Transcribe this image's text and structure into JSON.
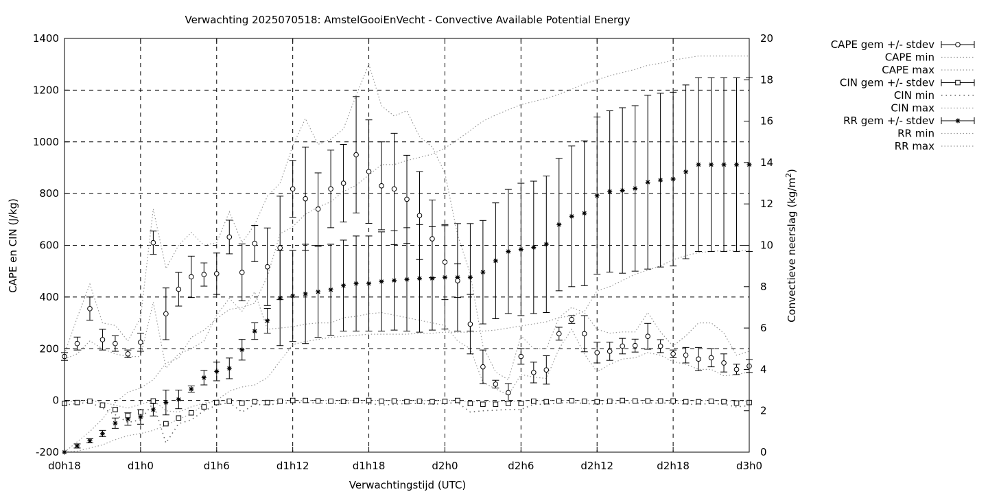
{
  "chart_data": {
    "type": "line",
    "title": "Verwachting 2025070518: AmstelGooiEnVecht - Convective Available Potential Energy",
    "xlabel": "Verwachtingstijd (UTC)",
    "ylabel": "CAPE en CIN (J/kg)",
    "y2label": "Convectieve neerslag (kg/m2)",
    "y2label_main": "Convectieve neerslag (kg/m",
    "y2label_sup": "2",
    "y2label_end": ")",
    "xlim": [
      18,
      72
    ],
    "ylim": [
      -200,
      1400
    ],
    "y2lim": [
      0,
      20
    ],
    "xtick_values": [
      18,
      24,
      30,
      36,
      42,
      48,
      54,
      60,
      66,
      72
    ],
    "xtick_labels": [
      "d0h18",
      "d1h0",
      "d1h6",
      "d1h12",
      "d1h18",
      "d2h0",
      "d2h6",
      "d2h12",
      "d2h18",
      "d3h0"
    ],
    "ytick_labels": [
      "-200",
      "0",
      "200",
      "400",
      "600",
      "800",
      "1000",
      "1200",
      "1400"
    ],
    "y2tick_labels": [
      "0",
      "2",
      "4",
      "6",
      "8",
      "10",
      "12",
      "14",
      "16",
      "18",
      "20"
    ],
    "grid": true,
    "legend_position": "outside-right",
    "x": [
      18,
      19,
      20,
      21,
      22,
      23,
      24,
      25,
      26,
      27,
      28,
      29,
      30,
      31,
      32,
      33,
      34,
      35,
      36,
      37,
      38,
      39,
      40,
      41,
      42,
      43,
      44,
      45,
      46,
      47,
      48,
      49,
      50,
      51,
      52,
      53,
      54,
      55,
      56,
      57,
      58,
      59,
      60,
      61,
      62,
      63,
      64,
      65,
      66,
      67,
      68,
      69,
      70,
      71,
      72
    ],
    "series": [
      {
        "name": "CAPE gem +/- stdev",
        "axis": "left",
        "marker": "circle",
        "values": [
          170,
          220,
          355,
          235,
          220,
          180,
          225,
          610,
          335,
          430,
          478,
          487,
          490,
          632,
          495,
          607,
          517,
          590,
          818,
          780,
          740,
          818,
          840,
          950,
          885,
          830,
          818,
          778,
          715,
          625,
          535,
          463,
          295,
          130,
          63,
          30,
          170,
          108,
          118,
          258,
          313,
          258,
          185,
          190,
          210,
          212,
          248,
          210,
          180,
          175,
          160,
          165,
          145,
          120,
          133
        ],
        "stdev": [
          15,
          25,
          45,
          40,
          30,
          15,
          35,
          45,
          100,
          65,
          80,
          45,
          80,
          65,
          110,
          70,
          150,
          200,
          110,
          200,
          140,
          150,
          150,
          225,
          200,
          170,
          215,
          170,
          170,
          150,
          145,
          65,
          115,
          65,
          15,
          35,
          30,
          40,
          55,
          25,
          15,
          70,
          40,
          35,
          30,
          25,
          50,
          25,
          15,
          30,
          45,
          35,
          35,
          20,
          25
        ]
      },
      {
        "name": "CAPE min",
        "axis": "left",
        "values": [
          160,
          180,
          230,
          200,
          180,
          170,
          170,
          380,
          125,
          180,
          200,
          230,
          330,
          395,
          345,
          420,
          275,
          280,
          285,
          295,
          300,
          300,
          320,
          325,
          335,
          340,
          330,
          320,
          310,
          300,
          290,
          230,
          200,
          70,
          45,
          20,
          100,
          90,
          85,
          200,
          275,
          180,
          110,
          140,
          160,
          165,
          185,
          175,
          150,
          140,
          120,
          120,
          95,
          100,
          110
        ]
      },
      {
        "name": "CAPE max",
        "axis": "left",
        "values": [
          180,
          320,
          450,
          300,
          290,
          230,
          320,
          740,
          510,
          600,
          650,
          600,
          610,
          730,
          610,
          680,
          790,
          840,
          985,
          1090,
          990,
          1010,
          1050,
          1180,
          1300,
          1140,
          1100,
          1120,
          1020,
          980,
          880,
          640,
          490,
          210,
          110,
          80,
          250,
          200,
          200,
          320,
          360,
          340,
          275,
          260,
          265,
          265,
          340,
          265,
          210,
          250,
          300,
          300,
          260,
          175,
          190
        ]
      },
      {
        "name": "CIN gem +/- stdev",
        "axis": "left",
        "marker": "square",
        "values": [
          -12,
          -8,
          -3,
          -18,
          -35,
          -58,
          -45,
          -2,
          -90,
          -68,
          -48,
          -25,
          -8,
          -3,
          -10,
          -5,
          -8,
          -3,
          0,
          0,
          -2,
          -3,
          -4,
          0,
          0,
          -3,
          -2,
          -5,
          -3,
          -5,
          -4,
          0,
          -12,
          -15,
          -15,
          -12,
          -12,
          -3,
          -5,
          -2,
          -1,
          -3,
          -5,
          -3,
          0,
          -2,
          -2,
          -2,
          -2,
          -5,
          -5,
          -3,
          -5,
          -10,
          -8
        ]
      },
      {
        "name": "CIN min",
        "axis": "left",
        "values": [
          -18,
          -12,
          -8,
          -30,
          -55,
          -85,
          -75,
          -10,
          -165,
          -90,
          -75,
          -40,
          -18,
          -8,
          -45,
          -15,
          -18,
          -12,
          -8,
          -8,
          -10,
          -12,
          -12,
          -8,
          -12,
          -18,
          -15,
          -12,
          -12,
          -15,
          -12,
          -8,
          -45,
          -40,
          -38,
          -35,
          -35,
          -15,
          -15,
          -10,
          -8,
          -12,
          -15,
          -12,
          -10,
          -10,
          -10,
          -10,
          -10,
          -15,
          -15,
          -12,
          -15,
          -25,
          -20
        ]
      },
      {
        "name": "CIN max",
        "axis": "left",
        "values": [
          -5,
          -3,
          0,
          -8,
          -18,
          -30,
          -15,
          0,
          -40,
          -45,
          -25,
          -10,
          -2,
          0,
          -2,
          0,
          -2,
          0,
          0,
          0,
          0,
          0,
          0,
          0,
          0,
          0,
          0,
          0,
          0,
          0,
          0,
          0,
          -5,
          -5,
          -5,
          -3,
          -3,
          0,
          -1,
          0,
          0,
          0,
          -1,
          0,
          0,
          0,
          0,
          0,
          0,
          -1,
          -1,
          0,
          -1,
          -3,
          -2
        ]
      },
      {
        "name": "RR gem +/- stdev",
        "axis": "right",
        "marker": "star",
        "values": [
          0.0,
          0.3,
          0.55,
          0.9,
          1.4,
          1.6,
          1.7,
          2.05,
          2.4,
          2.55,
          3.05,
          3.6,
          3.9,
          4.05,
          4.95,
          5.85,
          6.35,
          7.45,
          7.55,
          7.65,
          7.75,
          7.85,
          8.05,
          8.15,
          8.15,
          8.25,
          8.3,
          8.35,
          8.4,
          8.4,
          8.45,
          8.45,
          8.45,
          8.7,
          9.25,
          9.7,
          9.8,
          9.9,
          10.05,
          11.0,
          11.4,
          11.55,
          12.4,
          12.6,
          12.65,
          12.75,
          13.05,
          13.15,
          13.2,
          13.55,
          13.9,
          13.9,
          13.9,
          13.9,
          13.9
        ],
        "stdev": [
          0,
          0.1,
          0.1,
          0.15,
          0.25,
          0.3,
          0.35,
          0.3,
          0.6,
          0.45,
          0.15,
          0.35,
          0.45,
          0.5,
          0.5,
          0.4,
          0.6,
          2.3,
          2.2,
          2.4,
          2.2,
          2.2,
          2.2,
          2.3,
          2.3,
          2.4,
          2.4,
          2.5,
          2.6,
          2.5,
          2.5,
          2.6,
          2.6,
          2.5,
          2.8,
          3.0,
          3.2,
          3.2,
          3.3,
          3.2,
          3.4,
          3.5,
          3.8,
          3.9,
          4.0,
          4.0,
          4.2,
          4.2,
          4.2,
          4.2,
          4.2,
          4.2,
          4.2,
          4.2,
          4.2
        ]
      },
      {
        "name": "RR min",
        "axis": "right",
        "values": [
          0,
          0.05,
          0.2,
          0.35,
          0.6,
          0.8,
          0.9,
          1.05,
          1.3,
          1.6,
          1.85,
          2.3,
          2.5,
          2.95,
          3.15,
          3.25,
          3.6,
          4.4,
          5.2,
          5.35,
          5.45,
          5.55,
          5.6,
          5.65,
          5.7,
          5.7,
          5.7,
          5.7,
          5.75,
          5.75,
          5.8,
          5.8,
          5.8,
          5.85,
          5.9,
          6.0,
          6.1,
          6.2,
          6.3,
          6.5,
          6.6,
          6.8,
          7.8,
          8.0,
          8.3,
          8.6,
          8.8,
          9.0,
          9.3,
          9.5,
          9.65,
          9.7,
          9.75,
          9.75,
          9.75
        ]
      },
      {
        "name": "RR max",
        "axis": "right",
        "values": [
          0,
          0.5,
          1.0,
          1.6,
          2.4,
          2.9,
          3.1,
          3.5,
          4.3,
          4.55,
          5.55,
          5.9,
          6.45,
          6.9,
          7.0,
          7.2,
          8.5,
          10.55,
          10.9,
          11.5,
          11.85,
          12.1,
          12.6,
          12.9,
          13.4,
          13.9,
          13.9,
          14.1,
          14.25,
          14.4,
          14.7,
          15.1,
          15.55,
          16.0,
          16.3,
          16.55,
          16.8,
          16.95,
          17.1,
          17.3,
          17.55,
          17.8,
          18.0,
          18.2,
          18.35,
          18.5,
          18.7,
          18.8,
          18.95,
          19.05,
          19.15,
          19.15,
          19.15,
          19.15,
          19.15
        ]
      }
    ]
  }
}
